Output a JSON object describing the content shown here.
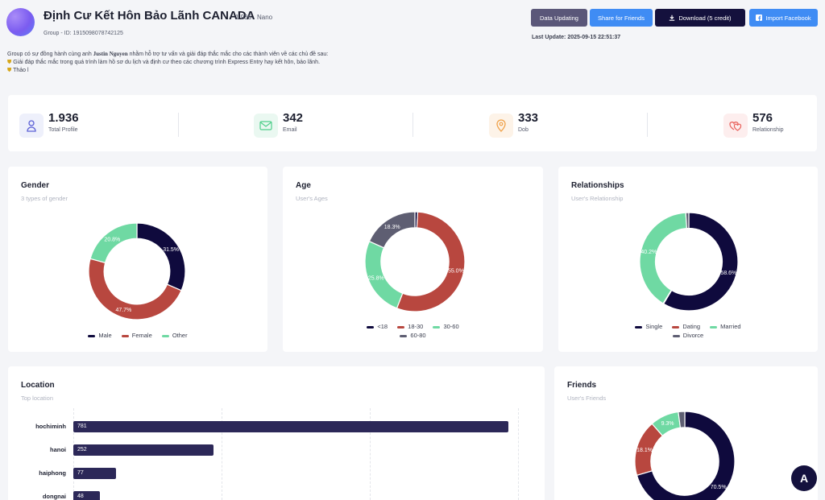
{
  "group": {
    "title": "Định Cư Kết Hôn Bảo Lãnh CANADA",
    "member_count": "1.936",
    "tier": "Nano",
    "group_id": "Group - ID: 1915098078742125",
    "desc_line1_prefix": "Group có sự đồng hành cùng anh ",
    "desc_line1_name": "Justin Nguyen",
    "desc_line1_suffix": " nhằm hỗ trợ tư vấn và giải đáp thắc mắc cho các thành viên về các chủ đề sau:",
    "desc_line2": "Giải đáp thắc mắc trong quá trình làm hồ sơ du lịch và định cư theo các chương trình Express Entry hay kết hôn, bảo lãnh.",
    "desc_line3": "Thảo l"
  },
  "toolbar": {
    "updating_label": "Data Updating",
    "share_label": "Share for Friends",
    "download_label": "Download (5 credit)",
    "facebook_label": "Import Facebook",
    "last_update": "Last Update: 2025-09-15 22:51:37"
  },
  "stats": [
    {
      "value": "1.936",
      "label": "Total Profile",
      "icon": "user-icon",
      "color": "#5b5fd6",
      "bg": "#eef0fb"
    },
    {
      "value": "342",
      "label": "Email",
      "icon": "mail-icon",
      "color": "#4fcf8b",
      "bg": "#eaf8f1"
    },
    {
      "value": "333",
      "label": "Dob",
      "icon": "map-pin-icon",
      "color": "#f0a24a",
      "bg": "#fdf3e8"
    },
    {
      "value": "576",
      "label": "Relationship",
      "icon": "hearts-icon",
      "color": "#e8605a",
      "bg": "#fdeeee"
    }
  ],
  "gender": {
    "title": "Gender",
    "subtitle": "3 types of gender",
    "legend": [
      "Male",
      "Female",
      "Other"
    ],
    "colors": [
      "#0f0a3d",
      "#b8473f",
      "#6fd9a3"
    ]
  },
  "age": {
    "title": "Age",
    "subtitle": "User's Ages",
    "legend": [
      "<18",
      "18-30",
      "30-60",
      "60-80"
    ],
    "colors": [
      "#0f0a3d",
      "#b8473f",
      "#6fd9a3",
      "#5e5e72"
    ]
  },
  "relationships": {
    "title": "Relationships",
    "subtitle": "User's Relationship",
    "legend": [
      "Single",
      "Dating",
      "Married",
      "Divorce"
    ],
    "colors": [
      "#0f0a3d",
      "#b8473f",
      "#6fd9a3",
      "#5e5e72"
    ]
  },
  "location": {
    "title": "Location",
    "subtitle": "Top location"
  },
  "friends": {
    "title": "Friends",
    "subtitle": "User's Friends",
    "colors": [
      "#0f0a3d",
      "#b8473f",
      "#6fd9a3",
      "#5e5e72"
    ]
  },
  "chart_data": [
    {
      "type": "pie",
      "categories": [
        "Male",
        "Female",
        "Other"
      ],
      "values": [
        31.5,
        47.7,
        20.8
      ],
      "labels": [
        "31.5%",
        "47.7%",
        "20.8%"
      ]
    },
    {
      "type": "pie",
      "categories": [
        "<18",
        "18-30",
        "30-60",
        "60-80"
      ],
      "values": [
        0.9,
        55.0,
        25.8,
        18.3
      ],
      "labels": [
        "",
        "55.0%",
        "25.8%",
        "18.3%"
      ]
    },
    {
      "type": "pie",
      "categories": [
        "Single",
        "Dating",
        "Married",
        "Divorce"
      ],
      "values": [
        58.6,
        0.2,
        40.2,
        1.0
      ],
      "labels": [
        "58.6%",
        "",
        "40.2%",
        ""
      ]
    },
    {
      "type": "bar",
      "categories": [
        "hochiminh",
        "hanoi",
        "haiphong",
        "dongnai"
      ],
      "values": [
        781,
        252,
        77,
        48
      ]
    },
    {
      "type": "pie",
      "values": [
        70.5,
        18.1,
        9.3,
        2.1
      ],
      "labels": [
        "70.5%",
        "18.1%",
        "9.3%",
        ""
      ]
    }
  ],
  "fab_label": "A"
}
